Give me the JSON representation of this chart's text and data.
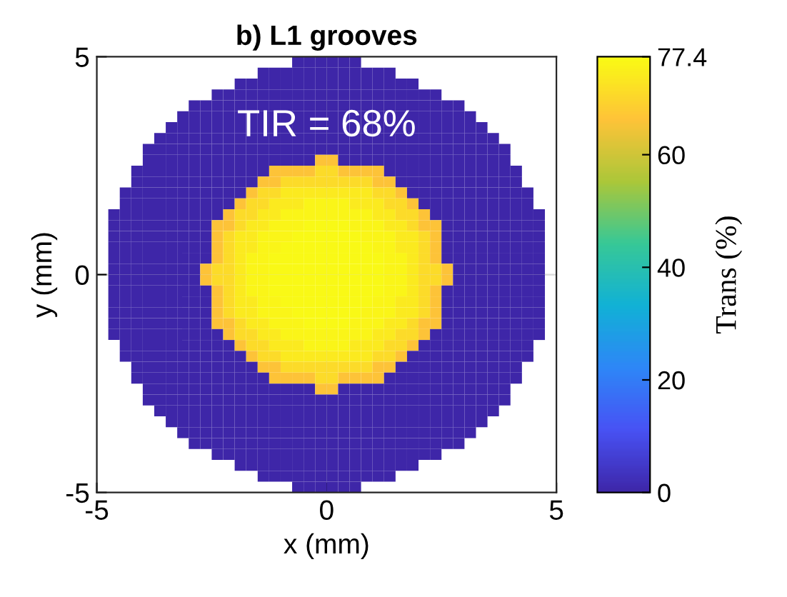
{
  "chart_data": {
    "type": "heatmap",
    "title": "b) L1 grooves",
    "xlabel": "x (mm)",
    "ylabel": "y (mm)",
    "clabel": "Trans (%)",
    "annotations": [
      "TIR = 68%"
    ],
    "xlim": [
      -5,
      5
    ],
    "ylim": [
      -5,
      5
    ],
    "xticks": [
      -5,
      0,
      5
    ],
    "yticks": [
      -5,
      0,
      5
    ],
    "grid": true,
    "clim": [
      0,
      77.4
    ],
    "cticks": [
      0,
      20,
      40,
      60,
      77.4
    ],
    "cells": [
      [
        null,
        null,
        null,
        null,
        null,
        null,
        null,
        null,
        null,
        null,
        null,
        null,
        null,
        null,
        null,
        null,
        null,
        0,
        0,
        0,
        0,
        0,
        0,
        null,
        null,
        null,
        null,
        null,
        null,
        null,
        null,
        null,
        null,
        null,
        null,
        null,
        null,
        null,
        null,
        null
      ],
      [
        null,
        null,
        null,
        null,
        null,
        null,
        null,
        null,
        null,
        null,
        null,
        null,
        null,
        null,
        0,
        0,
        0,
        0,
        0,
        0,
        0,
        0,
        0,
        0,
        0,
        0,
        null,
        null,
        null,
        null,
        null,
        null,
        null,
        null,
        null,
        null,
        null,
        null,
        null,
        null
      ],
      [
        null,
        null,
        null,
        null,
        null,
        null,
        null,
        null,
        null,
        null,
        null,
        null,
        0,
        0,
        0,
        0,
        0,
        0,
        0,
        0,
        0,
        0,
        0,
        0,
        0,
        0,
        0,
        0,
        null,
        null,
        null,
        null,
        null,
        null,
        null,
        null,
        null,
        null,
        null,
        null
      ],
      [
        null,
        null,
        null,
        null,
        null,
        null,
        null,
        null,
        null,
        null,
        0,
        0,
        0,
        0,
        0,
        0,
        0,
        0,
        0,
        0,
        0,
        0,
        0,
        0,
        0,
        0,
        0,
        0,
        0,
        0,
        null,
        null,
        null,
        null,
        null,
        null,
        null,
        null,
        null,
        null
      ],
      [
        null,
        null,
        null,
        null,
        null,
        null,
        null,
        null,
        0,
        0,
        0,
        0,
        0,
        0,
        0,
        0,
        0,
        0,
        0,
        0,
        0,
        0,
        0,
        0,
        0,
        0,
        0,
        0,
        0,
        0,
        0,
        0,
        null,
        null,
        null,
        null,
        null,
        null,
        null,
        null
      ],
      [
        null,
        null,
        null,
        null,
        null,
        null,
        null,
        0,
        0,
        0,
        0,
        0,
        0,
        0,
        0,
        0,
        0,
        0,
        0,
        0,
        0,
        0,
        0,
        0,
        0,
        0,
        0,
        0,
        0,
        0,
        0,
        0,
        0,
        null,
        null,
        null,
        null,
        null,
        null,
        null
      ],
      [
        null,
        null,
        null,
        null,
        null,
        null,
        0,
        0,
        0,
        0,
        0,
        0,
        0,
        0,
        0,
        0,
        0,
        0,
        0,
        0,
        0,
        0,
        0,
        0,
        0,
        0,
        0,
        0,
        0,
        0,
        0,
        0,
        0,
        0,
        null,
        null,
        null,
        null,
        null,
        null
      ],
      [
        null,
        null,
        null,
        null,
        null,
        0,
        0,
        0,
        0,
        0,
        0,
        0,
        0,
        0,
        0,
        0,
        0,
        0,
        0,
        0,
        0,
        0,
        0,
        0,
        0,
        0,
        0,
        0,
        0,
        0,
        0,
        0,
        0,
        0,
        0,
        null,
        null,
        null,
        null,
        null
      ],
      [
        null,
        null,
        null,
        null,
        0,
        0,
        0,
        0,
        0,
        0,
        0,
        0,
        0,
        0,
        0,
        0,
        0,
        0,
        0,
        0,
        0,
        0,
        0,
        0,
        0,
        0,
        0,
        0,
        0,
        0,
        0,
        0,
        0,
        0,
        0,
        0,
        null,
        null,
        null,
        null
      ],
      [
        null,
        null,
        null,
        null,
        0,
        0,
        0,
        0,
        0,
        0,
        0,
        0,
        0,
        0,
        0,
        0,
        0,
        0,
        0,
        66,
        66,
        0,
        0,
        0,
        0,
        0,
        0,
        0,
        0,
        0,
        0,
        0,
        0,
        0,
        0,
        0,
        null,
        null,
        null,
        null
      ],
      [
        null,
        null,
        null,
        0,
        0,
        0,
        0,
        0,
        0,
        0,
        0,
        0,
        0,
        0,
        0,
        66,
        66,
        66,
        66,
        71,
        71,
        66,
        66,
        66,
        66,
        0,
        0,
        0,
        0,
        0,
        0,
        0,
        0,
        0,
        0,
        0,
        0,
        null,
        null,
        null
      ],
      [
        null,
        null,
        null,
        0,
        0,
        0,
        0,
        0,
        0,
        0,
        0,
        0,
        0,
        0,
        66,
        66,
        71,
        71,
        71,
        71,
        71,
        71,
        71,
        71,
        66,
        66,
        0,
        0,
        0,
        0,
        0,
        0,
        0,
        0,
        0,
        0,
        0,
        null,
        null,
        null
      ],
      [
        null,
        null,
        0,
        0,
        0,
        0,
        0,
        0,
        0,
        0,
        0,
        0,
        0,
        66,
        71,
        71,
        74,
        74,
        74,
        74,
        74,
        74,
        74,
        74,
        71,
        71,
        66,
        0,
        0,
        0,
        0,
        0,
        0,
        0,
        0,
        0,
        0,
        0,
        null,
        null
      ],
      [
        null,
        null,
        0,
        0,
        0,
        0,
        0,
        0,
        0,
        0,
        0,
        0,
        66,
        71,
        71,
        74,
        74,
        74,
        76,
        76,
        76,
        76,
        74,
        74,
        74,
        71,
        71,
        66,
        0,
        0,
        0,
        0,
        0,
        0,
        0,
        0,
        0,
        0,
        null,
        null
      ],
      [
        null,
        0,
        0,
        0,
        0,
        0,
        0,
        0,
        0,
        0,
        0,
        66,
        71,
        71,
        74,
        74,
        76,
        76,
        76,
        76,
        76,
        76,
        76,
        76,
        74,
        74,
        71,
        71,
        66,
        0,
        0,
        0,
        0,
        0,
        0,
        0,
        0,
        0,
        0,
        null
      ],
      [
        null,
        0,
        0,
        0,
        0,
        0,
        0,
        0,
        0,
        0,
        66,
        66,
        71,
        74,
        74,
        76,
        76,
        76,
        77,
        77,
        77,
        77,
        76,
        76,
        76,
        74,
        74,
        71,
        66,
        66,
        0,
        0,
        0,
        0,
        0,
        0,
        0,
        0,
        0,
        null
      ],
      [
        null,
        0,
        0,
        0,
        0,
        0,
        0,
        0,
        0,
        0,
        66,
        71,
        74,
        74,
        76,
        76,
        76,
        77,
        77,
        77,
        77,
        77,
        77,
        76,
        76,
        76,
        74,
        74,
        71,
        66,
        0,
        0,
        0,
        0,
        0,
        0,
        0,
        0,
        0,
        null
      ],
      [
        null,
        0,
        0,
        0,
        0,
        0,
        0,
        0,
        0,
        0,
        66,
        71,
        74,
        74,
        76,
        76,
        77,
        77,
        77,
        77,
        77,
        77,
        77,
        77,
        76,
        76,
        74,
        74,
        71,
        66,
        0,
        0,
        0,
        0,
        0,
        0,
        0,
        0,
        0,
        null
      ],
      [
        null,
        0,
        0,
        0,
        0,
        0,
        0,
        0,
        0,
        0,
        66,
        71,
        74,
        76,
        76,
        77,
        77,
        77,
        77,
        77,
        77,
        77,
        77,
        77,
        77,
        76,
        76,
        74,
        71,
        66,
        0,
        0,
        0,
        0,
        0,
        0,
        0,
        0,
        0,
        null
      ],
      [
        null,
        0,
        0,
        0,
        0,
        0,
        0,
        0,
        0,
        66,
        71,
        71,
        74,
        76,
        76,
        77,
        77,
        77,
        77,
        77,
        77,
        77,
        77,
        77,
        77,
        76,
        76,
        74,
        71,
        71,
        66,
        0,
        0,
        0,
        0,
        0,
        0,
        0,
        0,
        null
      ],
      [
        null,
        0,
        0,
        0,
        0,
        0,
        0,
        0,
        0,
        66,
        71,
        71,
        74,
        76,
        76,
        77,
        77,
        77,
        77,
        77,
        77,
        77,
        77,
        77,
        77,
        76,
        76,
        74,
        71,
        71,
        66,
        0,
        0,
        0,
        0,
        0,
        0,
        0,
        0,
        null
      ],
      [
        null,
        0,
        0,
        0,
        0,
        0,
        0,
        0,
        0,
        0,
        66,
        71,
        74,
        76,
        76,
        77,
        77,
        77,
        77,
        77,
        77,
        77,
        77,
        77,
        77,
        76,
        76,
        74,
        71,
        66,
        0,
        0,
        0,
        0,
        0,
        0,
        0,
        0,
        0,
        null
      ],
      [
        null,
        0,
        0,
        0,
        0,
        0,
        0,
        0,
        0,
        0,
        66,
        71,
        74,
        74,
        76,
        76,
        77,
        77,
        77,
        77,
        77,
        77,
        77,
        77,
        76,
        76,
        74,
        74,
        71,
        66,
        0,
        0,
        0,
        0,
        0,
        0,
        0,
        0,
        0,
        null
      ],
      [
        null,
        0,
        0,
        0,
        0,
        0,
        0,
        0,
        0,
        0,
        66,
        71,
        74,
        74,
        76,
        76,
        76,
        77,
        77,
        77,
        77,
        77,
        77,
        76,
        76,
        76,
        74,
        74,
        71,
        66,
        0,
        0,
        0,
        0,
        0,
        0,
        0,
        0,
        0,
        null
      ],
      [
        null,
        0,
        0,
        0,
        0,
        0,
        0,
        0,
        0,
        0,
        66,
        66,
        71,
        74,
        74,
        76,
        76,
        76,
        77,
        77,
        77,
        77,
        76,
        76,
        76,
        74,
        74,
        71,
        66,
        66,
        0,
        0,
        0,
        0,
        0,
        0,
        0,
        0,
        0,
        null
      ],
      [
        null,
        0,
        0,
        0,
        0,
        0,
        0,
        0,
        0,
        0,
        0,
        66,
        71,
        71,
        74,
        74,
        76,
        76,
        76,
        76,
        76,
        76,
        76,
        76,
        74,
        74,
        71,
        71,
        66,
        0,
        0,
        0,
        0,
        0,
        0,
        0,
        0,
        0,
        0,
        null
      ],
      [
        null,
        null,
        0,
        0,
        0,
        0,
        0,
        0,
        0,
        0,
        0,
        0,
        66,
        71,
        71,
        74,
        74,
        74,
        76,
        76,
        76,
        76,
        74,
        74,
        74,
        71,
        71,
        66,
        0,
        0,
        0,
        0,
        0,
        0,
        0,
        0,
        0,
        0,
        null,
        null
      ],
      [
        null,
        null,
        0,
        0,
        0,
        0,
        0,
        0,
        0,
        0,
        0,
        0,
        0,
        66,
        71,
        71,
        74,
        74,
        74,
        74,
        74,
        74,
        74,
        74,
        71,
        71,
        66,
        0,
        0,
        0,
        0,
        0,
        0,
        0,
        0,
        0,
        0,
        0,
        null,
        null
      ],
      [
        null,
        null,
        null,
        0,
        0,
        0,
        0,
        0,
        0,
        0,
        0,
        0,
        0,
        0,
        66,
        66,
        71,
        71,
        71,
        71,
        71,
        71,
        71,
        71,
        66,
        66,
        0,
        0,
        0,
        0,
        0,
        0,
        0,
        0,
        0,
        0,
        0,
        null,
        null,
        null
      ],
      [
        null,
        null,
        null,
        0,
        0,
        0,
        0,
        0,
        0,
        0,
        0,
        0,
        0,
        0,
        0,
        66,
        66,
        66,
        66,
        71,
        71,
        66,
        66,
        66,
        66,
        0,
        0,
        0,
        0,
        0,
        0,
        0,
        0,
        0,
        0,
        0,
        0,
        null,
        null,
        null
      ],
      [
        null,
        null,
        null,
        null,
        0,
        0,
        0,
        0,
        0,
        0,
        0,
        0,
        0,
        0,
        0,
        0,
        0,
        0,
        0,
        66,
        66,
        0,
        0,
        0,
        0,
        0,
        0,
        0,
        0,
        0,
        0,
        0,
        0,
        0,
        0,
        0,
        null,
        null,
        null,
        null
      ],
      [
        null,
        null,
        null,
        null,
        0,
        0,
        0,
        0,
        0,
        0,
        0,
        0,
        0,
        0,
        0,
        0,
        0,
        0,
        0,
        0,
        0,
        0,
        0,
        0,
        0,
        0,
        0,
        0,
        0,
        0,
        0,
        0,
        0,
        0,
        0,
        0,
        null,
        null,
        null,
        null
      ],
      [
        null,
        null,
        null,
        null,
        null,
        0,
        0,
        0,
        0,
        0,
        0,
        0,
        0,
        0,
        0,
        0,
        0,
        0,
        0,
        0,
        0,
        0,
        0,
        0,
        0,
        0,
        0,
        0,
        0,
        0,
        0,
        0,
        0,
        0,
        0,
        null,
        null,
        null,
        null,
        null
      ],
      [
        null,
        null,
        null,
        null,
        null,
        null,
        0,
        0,
        0,
        0,
        0,
        0,
        0,
        0,
        0,
        0,
        0,
        0,
        0,
        0,
        0,
        0,
        0,
        0,
        0,
        0,
        0,
        0,
        0,
        0,
        0,
        0,
        0,
        0,
        null,
        null,
        null,
        null,
        null,
        null
      ],
      [
        null,
        null,
        null,
        null,
        null,
        null,
        null,
        0,
        0,
        0,
        0,
        0,
        0,
        0,
        0,
        0,
        0,
        0,
        0,
        0,
        0,
        0,
        0,
        0,
        0,
        0,
        0,
        0,
        0,
        0,
        0,
        0,
        0,
        null,
        null,
        null,
        null,
        null,
        null,
        null
      ],
      [
        null,
        null,
        null,
        null,
        null,
        null,
        null,
        null,
        0,
        0,
        0,
        0,
        0,
        0,
        0,
        0,
        0,
        0,
        0,
        0,
        0,
        0,
        0,
        0,
        0,
        0,
        0,
        0,
        0,
        0,
        0,
        0,
        null,
        null,
        null,
        null,
        null,
        null,
        null,
        null
      ],
      [
        null,
        null,
        null,
        null,
        null,
        null,
        null,
        null,
        null,
        null,
        0,
        0,
        0,
        0,
        0,
        0,
        0,
        0,
        0,
        0,
        0,
        0,
        0,
        0,
        0,
        0,
        0,
        0,
        0,
        0,
        null,
        null,
        null,
        null,
        null,
        null,
        null,
        null,
        null,
        null
      ],
      [
        null,
        null,
        null,
        null,
        null,
        null,
        null,
        null,
        null,
        null,
        null,
        null,
        0,
        0,
        0,
        0,
        0,
        0,
        0,
        0,
        0,
        0,
        0,
        0,
        0,
        0,
        0,
        0,
        null,
        null,
        null,
        null,
        null,
        null,
        null,
        null,
        null,
        null,
        null,
        null
      ],
      [
        null,
        null,
        null,
        null,
        null,
        null,
        null,
        null,
        null,
        null,
        null,
        null,
        null,
        null,
        0,
        0,
        0,
        0,
        0,
        0,
        0,
        0,
        0,
        0,
        0,
        0,
        null,
        null,
        null,
        null,
        null,
        null,
        null,
        null,
        null,
        null,
        null,
        null,
        null,
        null
      ],
      [
        null,
        null,
        null,
        null,
        null,
        null,
        null,
        null,
        null,
        null,
        null,
        null,
        null,
        null,
        null,
        null,
        null,
        0,
        0,
        0,
        0,
        0,
        0,
        null,
        null,
        null,
        null,
        null,
        null,
        null,
        null,
        null,
        null,
        null,
        null,
        null,
        null,
        null,
        null,
        null
      ]
    ]
  }
}
